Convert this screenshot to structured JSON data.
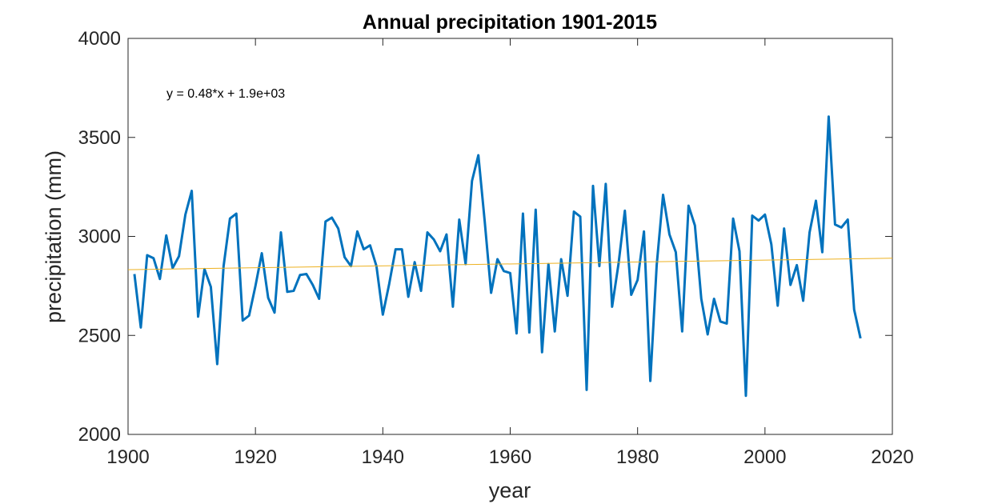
{
  "chart_data": {
    "type": "line",
    "title": "Annual precipitation 1901-2015",
    "xlabel": "year",
    "ylabel": "precipitation (mm)",
    "xlim": [
      1900,
      2020
    ],
    "ylim": [
      2000,
      4000
    ],
    "xticks": [
      1900,
      1920,
      1940,
      1960,
      1980,
      2000,
      2020
    ],
    "yticks": [
      2000,
      2500,
      3000,
      3500,
      4000
    ],
    "grid": false,
    "annotation": "y = 0.48*x + 1.9e+03",
    "series": [
      {
        "color": "#0072BD",
        "x": [
          1901,
          1902,
          1903,
          1904,
          1905,
          1906,
          1907,
          1908,
          1909,
          1910,
          1911,
          1912,
          1913,
          1914,
          1915,
          1916,
          1917,
          1918,
          1919,
          1920,
          1921,
          1922,
          1923,
          1924,
          1925,
          1926,
          1927,
          1928,
          1929,
          1930,
          1931,
          1932,
          1933,
          1934,
          1935,
          1936,
          1937,
          1938,
          1939,
          1940,
          1941,
          1942,
          1943,
          1944,
          1945,
          1946,
          1947,
          1948,
          1949,
          1950,
          1951,
          1952,
          1953,
          1954,
          1955,
          1956,
          1957,
          1958,
          1959,
          1960,
          1961,
          1962,
          1963,
          1964,
          1965,
          1966,
          1967,
          1968,
          1969,
          1970,
          1971,
          1972,
          1973,
          1974,
          1975,
          1976,
          1977,
          1978,
          1979,
          1980,
          1981,
          1982,
          1983,
          1984,
          1985,
          1986,
          1987,
          1988,
          1989,
          1990,
          1991,
          1992,
          1993,
          1994,
          1995,
          1996,
          1997,
          1998,
          1999,
          2000,
          2001,
          2002,
          2003,
          2004,
          2005,
          2006,
          2007,
          2008,
          2009,
          2010,
          2011,
          2012,
          2013,
          2014,
          2015
        ],
        "values": [
          2810,
          2540,
          2905,
          2890,
          2785,
          3005,
          2840,
          2900,
          3110,
          3230,
          2595,
          2835,
          2745,
          2355,
          2850,
          3090,
          3115,
          2575,
          2600,
          2750,
          2915,
          2690,
          2615,
          3020,
          2720,
          2725,
          2805,
          2810,
          2755,
          2685,
          3075,
          3095,
          3040,
          2895,
          2850,
          3025,
          2935,
          2955,
          2850,
          2605,
          2760,
          2935,
          2935,
          2695,
          2870,
          2725,
          3020,
          2985,
          2925,
          3010,
          2645,
          3085,
          2860,
          3280,
          3410,
          3075,
          2715,
          2885,
          2825,
          2815,
          2510,
          3115,
          2515,
          3135,
          2415,
          2860,
          2520,
          2885,
          2700,
          3125,
          3100,
          2225,
          3255,
          2850,
          3265,
          2645,
          2860,
          3130,
          2705,
          2780,
          3025,
          2270,
          2855,
          3210,
          3010,
          2920,
          2520,
          3155,
          3055,
          2685,
          2505,
          2685,
          2570,
          2560,
          3090,
          2925,
          2195,
          3105,
          3080,
          3110,
          2960,
          2650,
          3040,
          2755,
          2855,
          2675,
          3020,
          3180,
          2920,
          3605,
          3060,
          3045,
          3085,
          2630,
          2485
        ]
      },
      {
        "color": "#EDB120",
        "x": [
          1900,
          2020
        ],
        "values": [
          2832,
          2890
        ]
      }
    ]
  }
}
